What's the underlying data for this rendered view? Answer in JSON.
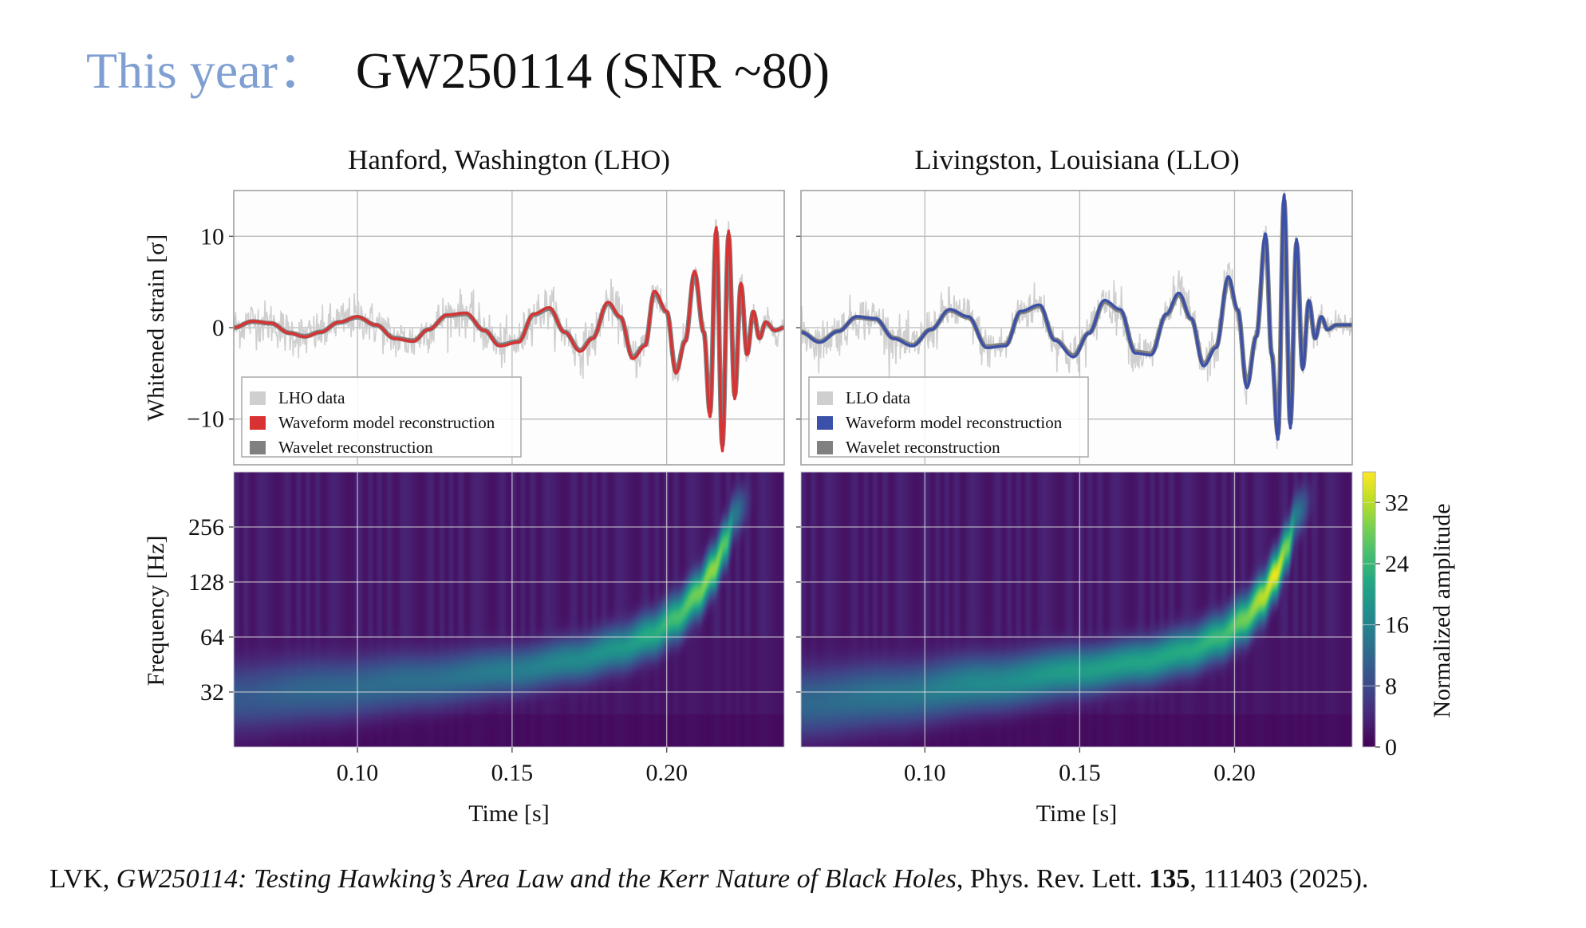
{
  "slide": {
    "title_lead": "This year：",
    "title_main": "GW250114 (SNR ~80)"
  },
  "citation": {
    "authors": "LVK, ",
    "title": "GW250114: Testing Hawking’s Area Law and the Kerr Nature of Black Holes",
    "journal": ", Phys. Rev. Lett. ",
    "volume": "135",
    "rest": ", 111403 (2025)."
  },
  "chart_data": [
    {
      "type": "line",
      "panel": "LHO-strain",
      "title": "Hanford, Washington (LHO)",
      "xlabel": "",
      "ylabel": "Whitened strain [σ]",
      "xlim": [
        0.06,
        0.238
      ],
      "ylim": [
        -15,
        15
      ],
      "xticks": [
        0.1,
        0.15,
        0.2
      ],
      "yticks": [
        10,
        0,
        -10
      ],
      "ytick_labels": [
        "10",
        "0",
        "−10"
      ],
      "grid": true,
      "legend_position": "lower-left",
      "legend": [
        {
          "label": "LHO data",
          "color": "#cfcfcf"
        },
        {
          "label": "Waveform model reconstruction",
          "color": "#d93232"
        },
        {
          "label": "Wavelet reconstruction",
          "color": "#808080"
        }
      ],
      "series": [
        {
          "name": "Waveform model reconstruction",
          "x": [
            0.06,
            0.066,
            0.072,
            0.078,
            0.083,
            0.088,
            0.094,
            0.1,
            0.106,
            0.112,
            0.118,
            0.123,
            0.129,
            0.135,
            0.141,
            0.146,
            0.152,
            0.157,
            0.162,
            0.167,
            0.172,
            0.176,
            0.181,
            0.185,
            0.189,
            0.193,
            0.196,
            0.2,
            0.203,
            0.206,
            0.209,
            0.212,
            0.214,
            0.216,
            0.218,
            0.22,
            0.222,
            0.224,
            0.226,
            0.228,
            0.23,
            0.232,
            0.235,
            0.238
          ],
          "y": [
            0.0,
            0.7,
            0.5,
            -0.6,
            -1.0,
            -0.5,
            0.6,
            1.2,
            0.3,
            -1.2,
            -1.5,
            -0.2,
            1.4,
            1.6,
            -0.3,
            -2.0,
            -1.6,
            1.5,
            2.2,
            -0.5,
            -2.6,
            -1.2,
            2.8,
            1.2,
            -3.4,
            -2.0,
            4.0,
            1.8,
            -5.0,
            -1.5,
            6.2,
            -0.5,
            -9.8,
            11.0,
            -13.5,
            10.6,
            -7.8,
            4.9,
            -3.0,
            1.8,
            -1.2,
            0.6,
            -0.3,
            0.0
          ]
        },
        {
          "name": "Wavelet reconstruction",
          "follows": "Waveform model reconstruction"
        },
        {
          "name": "LHO data",
          "follows": "Waveform model reconstruction",
          "noise_sigma": 1.2
        }
      ]
    },
    {
      "type": "line",
      "panel": "LLO-strain",
      "title": "Livingston, Louisiana (LLO)",
      "xlabel": "",
      "ylabel": "",
      "xlim": [
        0.06,
        0.238
      ],
      "ylim": [
        -15,
        15
      ],
      "xticks": [
        0.1,
        0.15,
        0.2
      ],
      "yticks": [
        10,
        0,
        -10
      ],
      "grid": true,
      "legend_position": "lower-left",
      "legend": [
        {
          "label": "LLO data",
          "color": "#cfcfcf"
        },
        {
          "label": "Waveform model reconstruction",
          "color": "#3b50a8"
        },
        {
          "label": "Wavelet reconstruction",
          "color": "#808080"
        }
      ],
      "series": [
        {
          "name": "Waveform model reconstruction",
          "x": [
            0.06,
            0.066,
            0.072,
            0.078,
            0.084,
            0.09,
            0.096,
            0.102,
            0.108,
            0.114,
            0.12,
            0.126,
            0.131,
            0.137,
            0.142,
            0.148,
            0.153,
            0.158,
            0.163,
            0.168,
            0.173,
            0.178,
            0.182,
            0.186,
            0.19,
            0.194,
            0.198,
            0.201,
            0.204,
            0.207,
            0.21,
            0.212,
            0.214,
            0.216,
            0.218,
            0.22,
            0.222,
            0.224,
            0.226,
            0.228,
            0.23,
            0.233,
            0.238
          ],
          "y": [
            -0.5,
            -1.6,
            -0.4,
            1.2,
            1.0,
            -1.2,
            -2.0,
            -0.2,
            2.0,
            1.2,
            -2.2,
            -2.0,
            1.8,
            2.5,
            -1.4,
            -3.2,
            -0.6,
            3.0,
            2.0,
            -2.8,
            -3.0,
            1.5,
            3.8,
            1.0,
            -4.2,
            -2.2,
            5.6,
            2.0,
            -6.6,
            -1.0,
            10.3,
            -3.0,
            -12.3,
            14.6,
            -11.0,
            9.7,
            -4.6,
            3.0,
            -1.2,
            1.2,
            -0.2,
            0.3,
            0.3
          ]
        },
        {
          "name": "Wavelet reconstruction",
          "follows": "Waveform model reconstruction"
        },
        {
          "name": "LLO data",
          "follows": "Waveform model reconstruction",
          "noise_sigma": 1.2
        }
      ]
    },
    {
      "type": "heatmap",
      "panel": "LHO-spectrogram",
      "xlabel": "Time [s]",
      "ylabel": "Frequency [Hz]",
      "xlim": [
        0.06,
        0.238
      ],
      "ylim": [
        16,
        512
      ],
      "yscale": "log2",
      "xticks": [
        0.1,
        0.15,
        0.2
      ],
      "xtick_labels": [
        "0.10",
        "0.15",
        "0.20"
      ],
      "yticks": [
        32,
        64,
        128,
        256
      ],
      "ytick_labels": [
        "32",
        "64",
        "128",
        "256"
      ],
      "colormap": "viridis",
      "clim": [
        0,
        36
      ],
      "chirp_track": {
        "t": [
          0.06,
          0.09,
          0.12,
          0.15,
          0.17,
          0.185,
          0.195,
          0.203,
          0.21,
          0.215,
          0.219,
          0.222
        ],
        "f": [
          30,
          33,
          37,
          42,
          48,
          56,
          66,
          82,
          110,
          150,
          210,
          300
        ],
        "amp": [
          10,
          12,
          13,
          15,
          17,
          19,
          22,
          25,
          28,
          30,
          26,
          14
        ]
      },
      "background_amp": 3
    },
    {
      "type": "heatmap",
      "panel": "LLO-spectrogram",
      "xlabel": "Time [s]",
      "ylabel": "",
      "xlim": [
        0.06,
        0.238
      ],
      "ylim": [
        16,
        512
      ],
      "yscale": "log2",
      "xticks": [
        0.1,
        0.15,
        0.2
      ],
      "xtick_labels": [
        "0.10",
        "0.15",
        "0.20"
      ],
      "yticks": [
        32,
        64,
        128,
        256
      ],
      "colormap": "viridis",
      "clim": [
        0,
        36
      ],
      "colorbar": {
        "label": "Normalized amplitude",
        "ticks": [
          0,
          8,
          16,
          24,
          32
        ],
        "tick_labels": [
          "0",
          "8",
          "16",
          "24",
          "32"
        ]
      },
      "chirp_track": {
        "t": [
          0.06,
          0.09,
          0.12,
          0.15,
          0.17,
          0.185,
          0.195,
          0.203,
          0.209,
          0.213,
          0.217,
          0.22
        ],
        "f": [
          28,
          31,
          36,
          42,
          47,
          54,
          64,
          80,
          105,
          140,
          200,
          300
        ],
        "amp": [
          12,
          14,
          17,
          20,
          21,
          22,
          24,
          28,
          32,
          35,
          28,
          14
        ]
      },
      "background_amp": 3
    }
  ]
}
